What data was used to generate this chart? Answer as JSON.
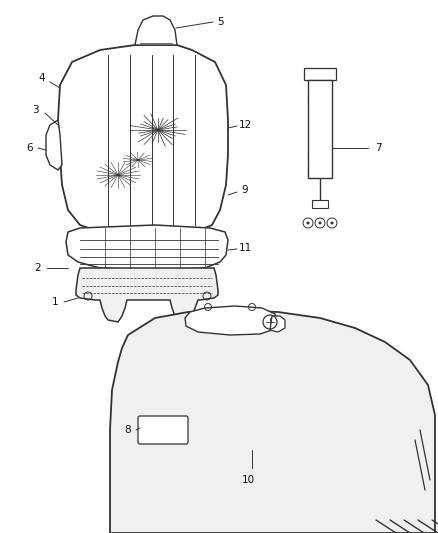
{
  "bg_color": "#ffffff",
  "line_color": "#333333",
  "label_color": "#111111",
  "fig_width": 4.38,
  "fig_height": 5.33,
  "dpi": 100
}
